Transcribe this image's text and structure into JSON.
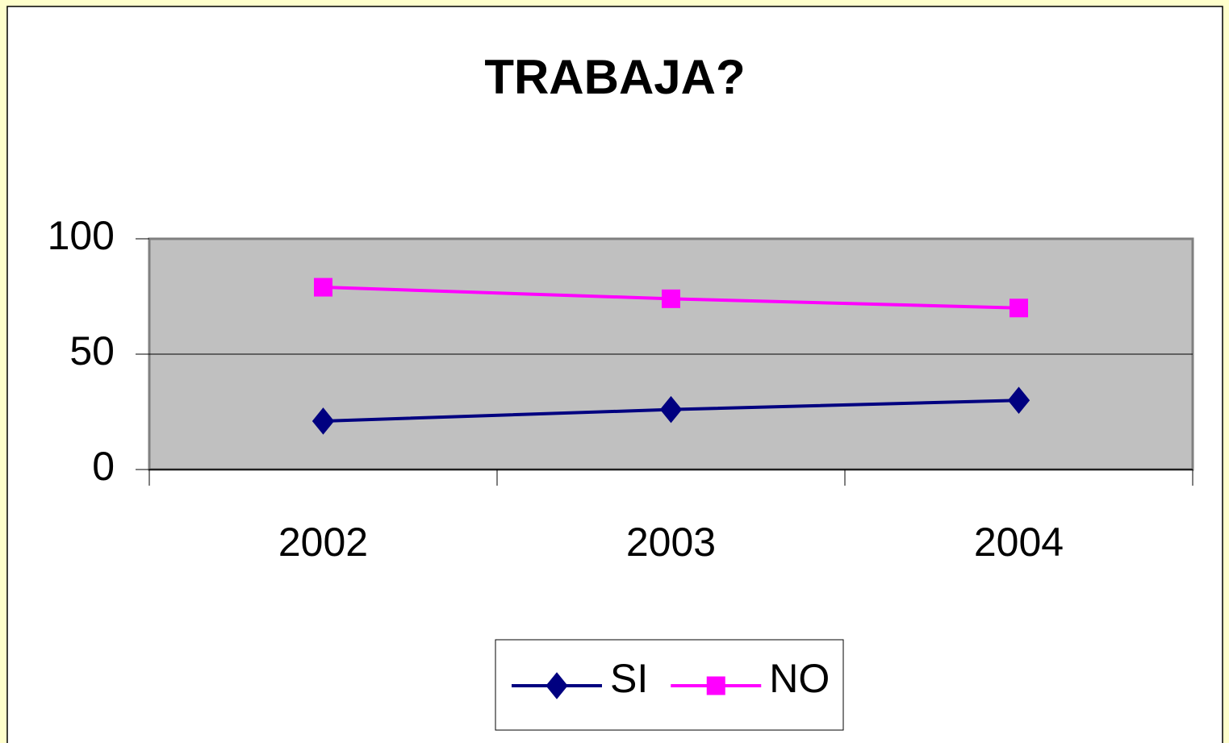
{
  "chart_data": {
    "type": "line",
    "title": "TRABAJA?",
    "categories": [
      "2002",
      "2003",
      "2004"
    ],
    "series": [
      {
        "name": "SI",
        "color": "#000080",
        "marker": "diamond",
        "values": [
          21,
          26,
          30
        ]
      },
      {
        "name": "NO",
        "color": "#ff00ff",
        "marker": "square",
        "values": [
          79,
          74,
          70
        ]
      }
    ],
    "ylim": [
      0,
      100
    ],
    "yticks": [
      0,
      50,
      100
    ],
    "grid": true,
    "legend": "bottom"
  }
}
